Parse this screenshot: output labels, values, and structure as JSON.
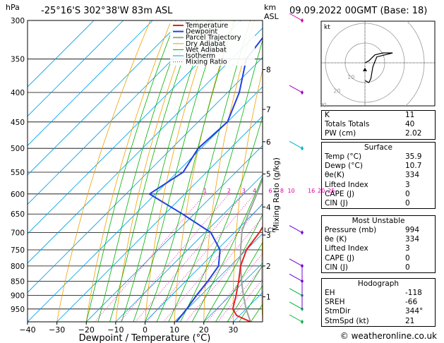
{
  "header": {
    "location": "-25°16'S 302°38'W 83m ASL",
    "datetime": "09.09.2022 00GMT (Base: 18)",
    "hpa_label": "hPa",
    "km_label": "km",
    "asl_label": "ASL"
  },
  "footer": {
    "credit": "© weatheronline.co.uk"
  },
  "colors": {
    "temperature": "#e82020",
    "dewpoint": "#2040e0",
    "parcel": "#a0a0a0",
    "dry_adiabat": "#f0a000",
    "wet_adiabat": "#00b000",
    "isotherm": "#00a0e0",
    "mixing_ratio": "#e000a0"
  },
  "chart_data": [
    {
      "type": "line",
      "name": "skew-T log-P diagram",
      "xlabel": "Dewpoint / Temperature (°C)",
      "ylabel": "Mixing Ratio (g/kg)",
      "xlim": [
        -40,
        40
      ],
      "ylim_hpa": [
        1000,
        300
      ],
      "y_scale": "log",
      "x_ticks": [
        -40,
        -30,
        -20,
        -10,
        0,
        10,
        20,
        30
      ],
      "x_tick_labels": [
        "−40",
        "−30",
        "−20",
        "−10",
        "0",
        "10",
        "20",
        "30"
      ],
      "pressure_levels": [
        300,
        350,
        400,
        450,
        500,
        550,
        600,
        650,
        700,
        750,
        800,
        850,
        900,
        950
      ],
      "altitude_km_ticks": [
        {
          "km": "1",
          "hpa": 905
        },
        {
          "km": "2",
          "hpa": 800
        },
        {
          "km": "3",
          "hpa": 707
        },
        {
          "km": "4",
          "hpa": 632
        },
        {
          "km": "5",
          "hpa": 554
        },
        {
          "km": "6",
          "hpa": 487
        },
        {
          "km": "7",
          "hpa": 428
        },
        {
          "km": "8",
          "hpa": 365
        }
      ],
      "lcl": {
        "label": "LCL",
        "hpa": 695
      },
      "mixing_ratio_labels": [
        {
          "label": "1",
          "t": -6.5
        },
        {
          "label": "2",
          "t": 1.5
        },
        {
          "label": "3",
          "t": 6.5
        },
        {
          "label": "4",
          "t": 10.0
        },
        {
          "label": "6",
          "t": 15.5
        },
        {
          "label": "8",
          "t": 19.0
        },
        {
          "label": "10",
          "t": 22.0
        },
        {
          "label": "16",
          "t": 28.5
        },
        {
          "label": "20",
          "t": 31.5
        },
        {
          "label": "25",
          "t": 34.5
        }
      ],
      "legend": {
        "placement": "top-left",
        "entries": [
          "Temperature",
          "Dewpoint",
          "Parcel Trajectory",
          "Dry Adiabat",
          "Wet Adiabat",
          "Isotherm",
          "Mixing Ratio"
        ]
      },
      "series": [
        {
          "name": "Temperature",
          "points": [
            [
              1000,
              35.9
            ],
            [
              975,
              29
            ],
            [
              950,
              25.5
            ],
            [
              900,
              22
            ],
            [
              850,
              18
            ],
            [
              800,
              13.5
            ],
            [
              750,
              10
            ],
            [
              700,
              8.5
            ],
            [
              650,
              6
            ],
            [
              600,
              1
            ],
            [
              550,
              -4
            ],
            [
              500,
              -10
            ],
            [
              450,
              -16.5
            ],
            [
              400,
              -23.5
            ],
            [
              350,
              -31.5
            ],
            [
              300,
              -41
            ]
          ]
        },
        {
          "name": "Dewpoint",
          "points": [
            [
              1000,
              10.7
            ],
            [
              950,
              9.8
            ],
            [
              900,
              8.5
            ],
            [
              850,
              7.5
            ],
            [
              800,
              6
            ],
            [
              750,
              1
            ],
            [
              700,
              -8
            ],
            [
              650,
              -24
            ],
            [
              600,
              -42
            ],
            [
              550,
              -38
            ],
            [
              500,
              -41
            ],
            [
              450,
              -40
            ],
            [
              400,
              -46
            ],
            [
              350,
              -55
            ],
            [
              300,
              -58
            ]
          ]
        },
        {
          "name": "Parcel Trajectory",
          "points": [
            [
              1000,
              35.9
            ],
            [
              950,
              30
            ],
            [
              900,
              24.5
            ],
            [
              850,
              19
            ],
            [
              800,
              13.5
            ],
            [
              750,
              8
            ],
            [
              695,
              2
            ],
            [
              650,
              -1.5
            ],
            [
              600,
              -5.5
            ],
            [
              550,
              -10
            ],
            [
              500,
              -15.5
            ],
            [
              450,
              -21.5
            ],
            [
              400,
              -28.5
            ],
            [
              350,
              -36.5
            ],
            [
              300,
              -46
            ]
          ]
        }
      ],
      "wind_barbs_hpa": [
        300,
        400,
        500,
        700,
        800,
        850,
        900,
        950,
        1000
      ]
    },
    {
      "type": "line",
      "name": "hodograph",
      "label": "kt",
      "ring_labels": [
        "10",
        "20",
        "30"
      ],
      "points": [
        [
          0,
          0
        ],
        [
          2,
          1
        ],
        [
          5,
          4
        ],
        [
          9,
          5
        ],
        [
          12,
          5
        ],
        [
          14,
          5
        ],
        [
          10,
          4
        ],
        [
          6,
          3
        ],
        [
          4,
          -2
        ],
        [
          3,
          -8
        ],
        [
          2,
          -10
        ],
        [
          0,
          -9
        ]
      ]
    }
  ],
  "indices": [
    {
      "label": "K",
      "value": "11"
    },
    {
      "label": "Totals Totals",
      "value": "40"
    },
    {
      "label": "PW (cm)",
      "value": "2.02"
    }
  ],
  "surface": {
    "title": "Surface",
    "rows": [
      {
        "label": "Temp (°C)",
        "value": "35.9"
      },
      {
        "label": "Dewp (°C)",
        "value": "10.7"
      },
      {
        "label": "θe(K)",
        "value": "334"
      },
      {
        "label": "Lifted Index",
        "value": "3"
      },
      {
        "label": "CAPE (J)",
        "value": "0"
      },
      {
        "label": "CIN (J)",
        "value": "0"
      }
    ]
  },
  "most_unstable": {
    "title": "Most Unstable",
    "rows": [
      {
        "label": "Pressure (mb)",
        "value": "994"
      },
      {
        "label": "θe (K)",
        "value": "334"
      },
      {
        "label": "Lifted Index",
        "value": "3"
      },
      {
        "label": "CAPE (J)",
        "value": "0"
      },
      {
        "label": "CIN (J)",
        "value": "0"
      }
    ]
  },
  "hodograph_table": {
    "title": "Hodograph",
    "rows": [
      {
        "label": "EH",
        "value": "-118"
      },
      {
        "label": "SREH",
        "value": "-66"
      },
      {
        "label": "StmDir",
        "value": "344°"
      },
      {
        "label": "StmSpd (kt)",
        "value": "21"
      }
    ]
  }
}
